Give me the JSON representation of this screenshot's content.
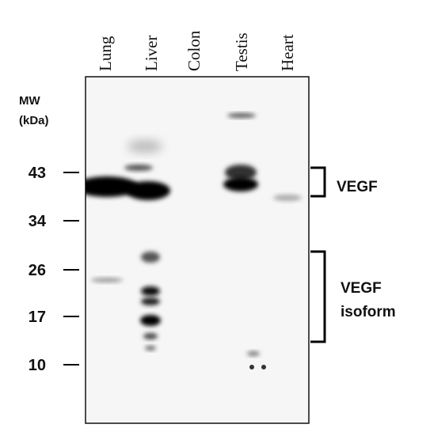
{
  "lanes": [
    "Lung",
    "Liver",
    "Colon",
    "Testis",
    "Heart"
  ],
  "mw_label": {
    "title": "MW",
    "unit": "(kDa)"
  },
  "markers": [
    "43",
    "34",
    "26",
    "17",
    "10"
  ],
  "annotations": {
    "vegf": "VEGF",
    "isoform_line1": "VEGF",
    "isoform_line2": "isoform"
  }
}
